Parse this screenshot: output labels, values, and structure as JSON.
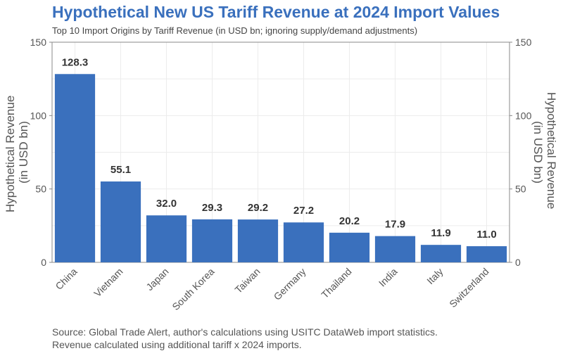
{
  "chart_data": {
    "type": "bar",
    "title": "Hypothetical New US Tariff Revenue at 2024 Import Values",
    "subtitle": "Top 10 Import Origins by Tariff Revenue (in USD bn; ignoring supply/demand adjustments)",
    "ylabel_line1": "Hypothetical Revenue",
    "ylabel_line2": "(in USD bn)",
    "categories": [
      "China",
      "Vietnam",
      "Japan",
      "South Korea",
      "Taiwan",
      "Germany",
      "Thailand",
      "India",
      "Italy",
      "Switzerland"
    ],
    "values": [
      128.3,
      55.1,
      32.0,
      29.3,
      29.2,
      27.2,
      20.2,
      17.9,
      11.9,
      11.0
    ],
    "value_labels": [
      "128.3",
      "55.1",
      "32.0",
      "29.3",
      "29.2",
      "27.2",
      "20.2",
      "17.9",
      "11.9",
      "11.0"
    ],
    "ylim": [
      0,
      150
    ],
    "yticks": [
      0,
      50,
      100,
      150
    ],
    "ytick_labels": [
      "0",
      "50",
      "100",
      "150"
    ],
    "grid": true,
    "secondary_y_axis": true,
    "bar_color": "#3a70bd"
  },
  "source_note": {
    "line1": "Source: Global Trade Alert, author's calculations using USITC DataWeb import statistics.",
    "line2": "Revenue calculated using additional tariff x 2024 imports."
  }
}
